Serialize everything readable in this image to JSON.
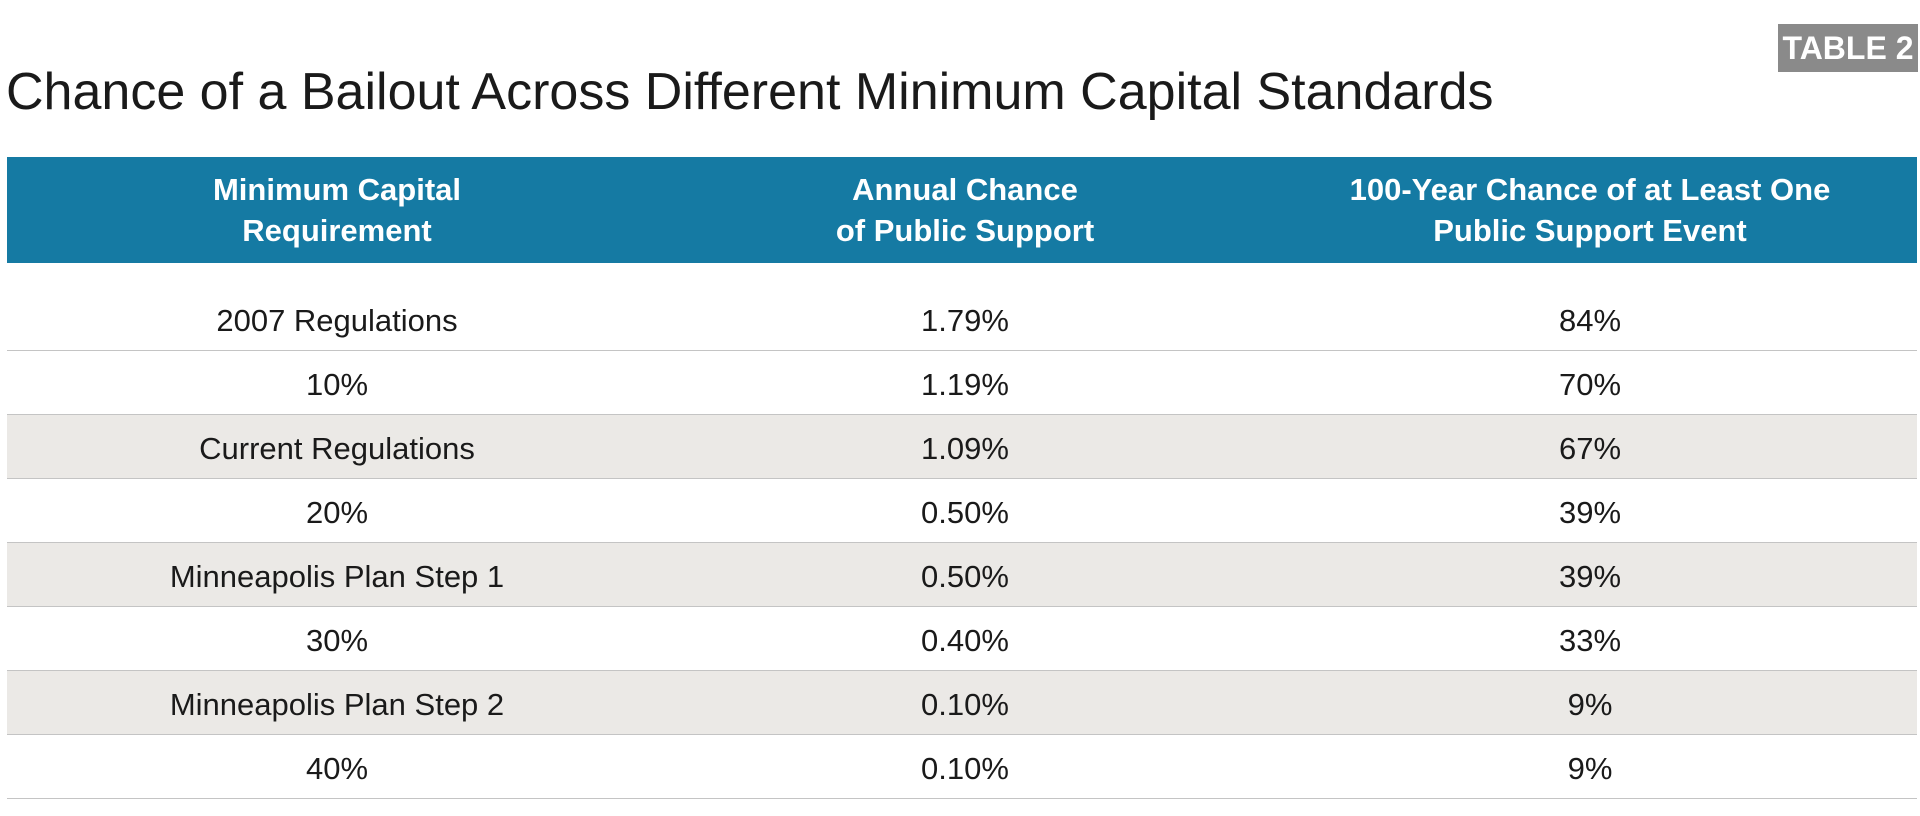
{
  "badge": "TABLE 2",
  "title": "Chance of a Bailout Across Different Minimum Capital Standards",
  "table": {
    "headers": [
      "Minimum Capital\nRequirement",
      "Annual Chance\nof Public Support",
      "100-Year Chance of at Least One\nPublic Support Event"
    ],
    "rows": [
      [
        "2007 Regulations",
        "1.79%",
        "84%"
      ],
      [
        "10%",
        "1.19%",
        "70%"
      ],
      [
        "Current Regulations",
        "1.09%",
        "67%"
      ],
      [
        "20%",
        "0.50%",
        "39%"
      ],
      [
        "Minneapolis Plan Step 1",
        "0.50%",
        "39%"
      ],
      [
        "30%",
        "0.40%",
        "33%"
      ],
      [
        "Minneapolis Plan Step 2",
        "0.10%",
        "9%"
      ],
      [
        "40%",
        "0.10%",
        "9%"
      ]
    ],
    "shaded_rows": [
      2,
      4,
      6
    ],
    "colors": {
      "header_bg": "#157aa3",
      "header_text": "#ffffff",
      "shaded_row_bg": "#ebe9e6",
      "badge_bg": "#8a8a8a"
    }
  }
}
